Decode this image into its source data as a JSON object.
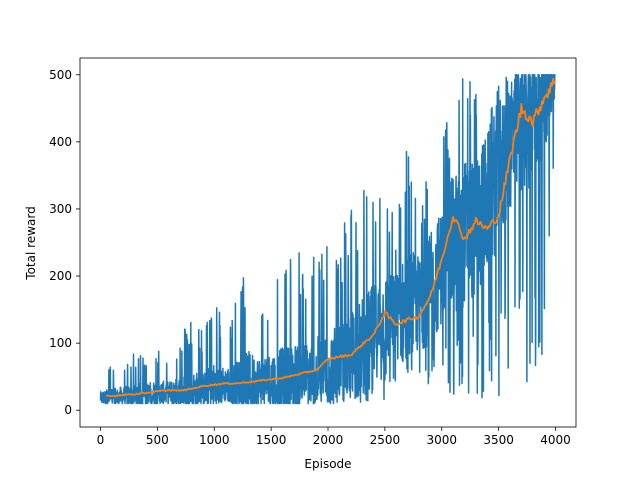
{
  "chart_data": {
    "type": "line",
    "title": "",
    "xlabel": "Episode",
    "ylabel": "Total reward",
    "xlim": [
      -180,
      4180
    ],
    "ylim": [
      -25,
      525
    ],
    "xticks": [
      0,
      500,
      1000,
      1500,
      2000,
      2500,
      3000,
      3500,
      4000
    ],
    "yticks": [
      0,
      100,
      200,
      300,
      400,
      500
    ],
    "grid": false,
    "legend": "none",
    "series": [
      {
        "style": "raw-noisy",
        "color": "#1f77b4",
        "x": [
          0,
          100,
          200,
          300,
          400,
          500,
          600,
          700,
          800,
          900,
          1000,
          1100,
          1200,
          1300,
          1400,
          1500,
          1600,
          1700,
          1800,
          1900,
          2000,
          2100,
          2200,
          2300,
          2400,
          2500,
          2600,
          2700,
          2800,
          2900,
          3000,
          3100,
          3200,
          3300,
          3400,
          3500,
          3600,
          3700,
          3800,
          3900,
          4000
        ],
        "low": [
          10,
          10,
          10,
          10,
          10,
          10,
          10,
          10,
          10,
          10,
          10,
          10,
          10,
          10,
          10,
          10,
          10,
          10,
          10,
          10,
          10,
          10,
          10,
          10,
          10,
          12,
          12,
          12,
          12,
          12,
          12,
          12,
          12,
          12,
          15,
          15,
          15,
          15,
          15,
          100,
          410
        ],
        "high": [
          52,
          75,
          70,
          85,
          85,
          95,
          85,
          110,
          145,
          120,
          170,
          125,
          170,
          225,
          175,
          200,
          220,
          240,
          230,
          240,
          280,
          255,
          315,
          350,
          335,
          320,
          290,
          425,
          330,
          380,
          395,
          500,
          500,
          500,
          500,
          500,
          500,
          500,
          500,
          500,
          500
        ],
        "mean": [
          18,
          20,
          21,
          22,
          24,
          25,
          26,
          27,
          28,
          31,
          35,
          38,
          38,
          40,
          42,
          44,
          46,
          48,
          52,
          56,
          62,
          68,
          80,
          93,
          115,
          135,
          140,
          148,
          160,
          180,
          215,
          245,
          265,
          275,
          305,
          355,
          405,
          430,
          445,
          470,
          492
        ]
      },
      {
        "style": "moving-average",
        "color": "#ff7f0e",
        "x": [
          0,
          100,
          200,
          300,
          400,
          500,
          600,
          700,
          800,
          900,
          1000,
          1100,
          1200,
          1300,
          1400,
          1500,
          1600,
          1700,
          1800,
          1900,
          2000,
          2100,
          2200,
          2300,
          2400,
          2500,
          2600,
          2700,
          2800,
          2900,
          3000,
          3100,
          3200,
          3300,
          3400,
          3500,
          3600,
          3700,
          3800,
          3900,
          4000
        ],
        "values": [
          22,
          21,
          23,
          24,
          26,
          28,
          30,
          29,
          32,
          36,
          38,
          40,
          40,
          42,
          44,
          46,
          48,
          52,
          56,
          60,
          76,
          80,
          82,
          98,
          112,
          145,
          128,
          135,
          140,
          170,
          225,
          290,
          255,
          282,
          270,
          290,
          375,
          450,
          430,
          466,
          492
        ],
        "start": 50
      }
    ]
  }
}
